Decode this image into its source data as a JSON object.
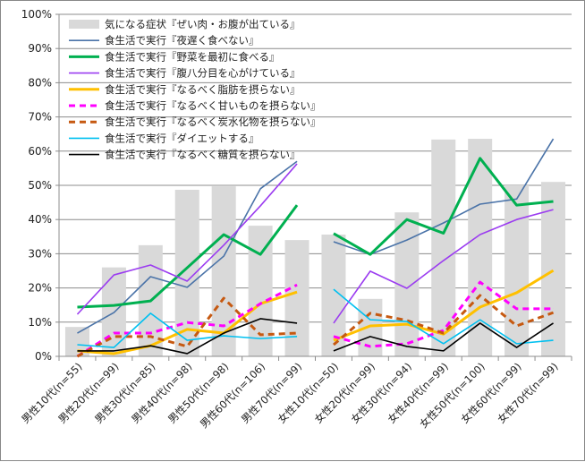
{
  "chart_data": {
    "type": "bar+line",
    "title": "",
    "xlabel": "",
    "ylabel": "",
    "ylim": [
      0,
      100
    ],
    "yticks": [
      "0%",
      "10%",
      "20%",
      "30%",
      "40%",
      "50%",
      "60%",
      "70%",
      "80%",
      "90%",
      "100%"
    ],
    "grid": true,
    "legend_position": "top-left",
    "categories": [
      "男性10代(n=55)",
      "男性20代(n=99)",
      "男性30代(n=85)",
      "男性40代(n=98)",
      "男性50代(n=98)",
      "男性60代(n=106)",
      "男性70代(n=99)",
      "女性10代(n=50)",
      "女性20代(n=99)",
      "女性30代(n=94)",
      "女性40代(n=99)",
      "女性50代(n=100)",
      "女性60代(n=99)",
      "女性70代(n=99)"
    ],
    "bar_series": {
      "name": "気になる症状『ぜい肉・お腹が出ている』",
      "color": "#d9d9d9",
      "values": [
        8.6,
        26,
        32.5,
        48.7,
        49.7,
        38.2,
        34,
        35.6,
        16.8,
        42.1,
        63.4,
        63.6,
        50,
        51
      ]
    },
    "series": [
      {
        "name": "食生活で実行『夜遅く食べない』",
        "color": "#4a73a8",
        "width": 1.6,
        "dash": "",
        "values": [
          6.8,
          12.8,
          23.3,
          20.2,
          29.3,
          49,
          57,
          33.5,
          29.8,
          34,
          39,
          44.5,
          46,
          63.6
        ]
      },
      {
        "name": "食生活で実行『野菜を最初に食べる』",
        "color": "#00b050",
        "width": 3,
        "dash": "",
        "values": [
          14.4,
          14.9,
          16.2,
          25.9,
          35.6,
          29.8,
          44.2,
          35.9,
          29.8,
          40,
          36,
          57.9,
          44.2,
          45.3
        ]
      },
      {
        "name": "食生活で実行『腹八分目を心がけている』",
        "color": "#9b3cf0",
        "width": 1.6,
        "dash": "",
        "values": [
          12.3,
          23.8,
          26.7,
          22,
          32.5,
          44,
          56.3,
          9.7,
          24.9,
          19.9,
          28,
          35.6,
          40,
          42.9
        ]
      },
      {
        "name": "食生活で実行『なるべく脂肪を摂らない』",
        "color": "#ffc000",
        "width": 3,
        "dash": "",
        "values": [
          1.6,
          0.8,
          3.1,
          7.9,
          6.8,
          15.4,
          18.8,
          4.7,
          8.9,
          9.4,
          6.5,
          14.4,
          18.6,
          25.1
        ]
      },
      {
        "name": "食生活で実行『なるべく甘いものを摂らない』",
        "color": "#ff00ff",
        "width": 3,
        "dash": "7,5",
        "values": [
          0,
          6.8,
          6.8,
          9.9,
          8.9,
          15.4,
          20.9,
          5.8,
          2.9,
          3.7,
          7.6,
          21.7,
          13.9,
          13.9
        ]
      },
      {
        "name": "食生活で実行『なるべく炭水化物を摂らない』",
        "color": "#c65911",
        "width": 3,
        "dash": "7,5",
        "values": [
          0,
          5.8,
          5.8,
          2.9,
          17,
          6.3,
          6.8,
          3.4,
          12.6,
          10.5,
          6.8,
          17.8,
          8.9,
          12.8
        ]
      },
      {
        "name": "食生活で実行『ダイエットする』",
        "color": "#00c0f0",
        "width": 1.6,
        "dash": "",
        "values": [
          3.4,
          2.6,
          12.6,
          4.7,
          6,
          5.2,
          5.8,
          19.6,
          10.7,
          10.2,
          3.7,
          10.7,
          3.7,
          4.7
        ]
      },
      {
        "name": "食生活で実行『なるべく糖質を摂らない』",
        "color": "#000000",
        "width": 1.6,
        "dash": "",
        "values": [
          1.6,
          1.6,
          3.1,
          0.8,
          6.8,
          11,
          9.7,
          1.6,
          5.8,
          2.9,
          1.6,
          9.7,
          2.6,
          9.7
        ]
      }
    ]
  }
}
